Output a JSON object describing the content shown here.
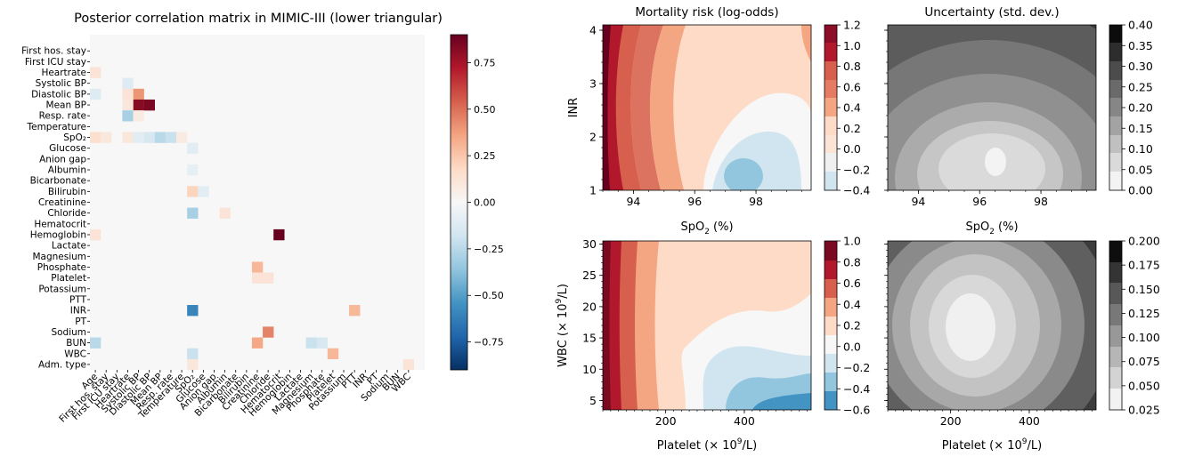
{
  "chart_data": [
    {
      "type": "heatmap",
      "title": "Posterior correlation matrix in MIMIC-III (lower triangular)",
      "variables": [
        "Age",
        "First hos. stay",
        "First ICU stay",
        "Heartrate",
        "Systolic BP",
        "Diastolic BP",
        "Mean BP",
        "Resp. rate",
        "Temperature",
        "SpO₂",
        "Glucose",
        "Anion gap",
        "Albumin",
        "Bicarbonate",
        "Bilirubin",
        "Creatinine",
        "Chloride",
        "Hematocrit",
        "Hemoglobin",
        "Lactate",
        "Magnesium",
        "Phosphate",
        "Platelet",
        "Potassium",
        "PTT",
        "INR",
        "PT",
        "Sodium",
        "BUN",
        "WBC",
        "Adm. type"
      ],
      "row_labels": [
        "First hos. stay",
        "First ICU stay",
        "Heartrate",
        "Systolic BP",
        "Diastolic BP",
        "Mean BP",
        "Resp. rate",
        "Temperature",
        "SpO₂",
        "Glucose",
        "Anion gap",
        "Albumin",
        "Bicarbonate",
        "Bilirubin",
        "Creatinine",
        "Chloride",
        "Hematocrit",
        "Hemoglobin",
        "Lactate",
        "Magnesium",
        "Phosphate",
        "Platelet",
        "Potassium",
        "PTT",
        "INR",
        "PT",
        "Sodium",
        "BUN",
        "WBC",
        "Adm. type"
      ],
      "col_labels": [
        "Age",
        "First hos. stay",
        "First ICU stay",
        "Heartrate",
        "Systolic BP",
        "Diastolic BP",
        "Mean BP",
        "Resp. rate",
        "Temperature",
        "SpO₂",
        "Glucose",
        "Anion gap",
        "Albumin",
        "Bicarbonate",
        "Bilirubin",
        "Creatinine",
        "Chloride",
        "Hematocrit",
        "Hemoglobin",
        "Lactate",
        "Magnesium",
        "Phosphate",
        "Platelet",
        "Potassium",
        "PTT",
        "INR",
        "PT",
        "Sodium",
        "BUN",
        "WBC"
      ],
      "notable_cells": [
        {
          "row": "Heartrate",
          "col": "Age",
          "value": 0.12
        },
        {
          "row": "Systolic BP",
          "col": "Heartrate",
          "value": -0.12
        },
        {
          "row": "Diastolic BP",
          "col": "Systolic BP",
          "value": 0.4
        },
        {
          "row": "Diastolic BP",
          "col": "Age",
          "value": -0.12
        },
        {
          "row": "Diastolic BP",
          "col": "Heartrate",
          "value": 0.12
        },
        {
          "row": "Mean BP",
          "col": "Systolic BP",
          "value": 0.82
        },
        {
          "row": "Mean BP",
          "col": "Diastolic BP",
          "value": 0.85
        },
        {
          "row": "Mean BP",
          "col": "Heartrate",
          "value": 0.1
        },
        {
          "row": "Resp. rate",
          "col": "Heartrate",
          "value": -0.3
        },
        {
          "row": "Resp. rate",
          "col": "Systolic BP",
          "value": 0.08
        },
        {
          "row": "SpO₂",
          "col": "Age",
          "value": 0.15
        },
        {
          "row": "SpO₂",
          "col": "First hos. stay",
          "value": 0.1
        },
        {
          "row": "SpO₂",
          "col": "Heartrate",
          "value": 0.1
        },
        {
          "row": "SpO₂",
          "col": "Systolic BP",
          "value": -0.1
        },
        {
          "row": "SpO₂",
          "col": "Diastolic BP",
          "value": -0.15
        },
        {
          "row": "SpO₂",
          "col": "Mean BP",
          "value": -0.25
        },
        {
          "row": "SpO₂",
          "col": "Resp. rate",
          "value": -0.2
        },
        {
          "row": "SpO₂",
          "col": "Temperature",
          "value": 0.08
        },
        {
          "row": "Glucose",
          "col": "SpO₂",
          "value": -0.1
        },
        {
          "row": "Albumin",
          "col": "SpO₂",
          "value": -0.08
        },
        {
          "row": "Bilirubin",
          "col": "SpO₂",
          "value": 0.2
        },
        {
          "row": "Bilirubin",
          "col": "Glucose",
          "value": -0.1
        },
        {
          "row": "Chloride",
          "col": "SpO₂",
          "value": -0.3
        },
        {
          "row": "Chloride",
          "col": "Albumin",
          "value": 0.12
        },
        {
          "row": "Hemoglobin",
          "col": "Hematocrit",
          "value": 0.9
        },
        {
          "row": "Hemoglobin",
          "col": "Age",
          "value": 0.12
        },
        {
          "row": "Phosphate",
          "col": "Creatinine",
          "value": 0.3
        },
        {
          "row": "Platelet",
          "col": "Creatinine",
          "value": 0.12
        },
        {
          "row": "Platelet",
          "col": "Chloride",
          "value": 0.12
        },
        {
          "row": "INR",
          "col": "SpO₂",
          "value": -0.6
        },
        {
          "row": "INR",
          "col": "PTT",
          "value": 0.3
        },
        {
          "row": "Sodium",
          "col": "Chloride",
          "value": 0.45
        },
        {
          "row": "BUN",
          "col": "Age",
          "value": -0.25
        },
        {
          "row": "BUN",
          "col": "Creatinine",
          "value": 0.35
        },
        {
          "row": "BUN",
          "col": "Magnesium",
          "value": -0.2
        },
        {
          "row": "BUN",
          "col": "Phosphate",
          "value": -0.15
        },
        {
          "row": "WBC",
          "col": "SpO₂",
          "value": -0.2
        },
        {
          "row": "WBC",
          "col": "Platelet",
          "value": 0.3
        },
        {
          "row": "Adm. type",
          "col": "SpO₂",
          "value": 0.1
        },
        {
          "row": "Adm. type",
          "col": "WBC",
          "value": 0.12
        }
      ],
      "colorbar": {
        "ticks": [
          0.75,
          0.5,
          0.25,
          0.0,
          -0.25,
          -0.5,
          -0.75
        ],
        "range": [
          -0.9,
          0.9
        ],
        "colormap": "RdBu_r"
      }
    },
    {
      "type": "contour",
      "title": "Mortality risk (log-odds)",
      "xlabel": "SpO$_2$ (%)",
      "ylabel": "INR",
      "xlim": [
        93,
        99.8
      ],
      "ylim": [
        1,
        4.1
      ],
      "xticks": [
        94,
        96,
        98
      ],
      "yticks": [
        1,
        2,
        3,
        4
      ],
      "levels": [
        -0.4,
        -0.2,
        0.0,
        0.2,
        0.4,
        0.6,
        0.8,
        1.0,
        1.2
      ],
      "colorbar_ticks": [
        "1.2",
        "1.0",
        "0.8",
        "0.6",
        "0.4",
        "0.2",
        "0.0",
        "-0.2",
        "-0.4"
      ],
      "minimum": {
        "x": 97.8,
        "y": 1.5
      }
    },
    {
      "type": "contour",
      "title": "Uncertainty (std. dev.)",
      "xlabel": "SpO$_2$ (%)",
      "xlim": [
        93,
        99.8
      ],
      "ylim": [
        1,
        4.1
      ],
      "xticks": [
        94,
        96,
        98
      ],
      "levels": [
        0.0,
        0.05,
        0.1,
        0.15,
        0.2,
        0.25,
        0.3,
        0.35,
        0.4
      ],
      "colorbar_ticks": [
        "0.40",
        "0.35",
        "0.30",
        "0.25",
        "0.20",
        "0.15",
        "0.10",
        "0.05",
        "0.00"
      ],
      "minimum": {
        "x": 97.3,
        "y": 1.6
      }
    },
    {
      "type": "contour",
      "title": "",
      "xlabel": "Platelet (× 10$^9$/L)",
      "ylabel": "WBC (× 10$^9$/L)",
      "xlim": [
        40,
        570
      ],
      "ylim": [
        3.5,
        30.5
      ],
      "xticks": [
        200,
        400
      ],
      "yticks": [
        5,
        10,
        15,
        20,
        25,
        30
      ],
      "levels": [
        -0.6,
        -0.4,
        -0.2,
        0.0,
        0.2,
        0.4,
        0.6,
        0.8,
        1.0
      ],
      "colorbar_ticks": [
        "1.0",
        "0.8",
        "0.6",
        "0.4",
        "0.2",
        "0.0",
        "-0.2",
        "-0.4",
        "-0.6"
      ]
    },
    {
      "type": "contour",
      "title": "",
      "xlabel": "Platelet (× 10$^9$/L)",
      "xlim": [
        40,
        570
      ],
      "ylim": [
        3.5,
        30.5
      ],
      "xticks": [
        200,
        400
      ],
      "levels": [
        0.025,
        0.05,
        0.075,
        0.1,
        0.125,
        0.15,
        0.175,
        0.2
      ],
      "colorbar_ticks": [
        "0.200",
        "0.175",
        "0.150",
        "0.125",
        "0.100",
        "0.075",
        "0.050",
        "0.025"
      ],
      "minimum": {
        "x": 225,
        "y": 16
      }
    }
  ]
}
